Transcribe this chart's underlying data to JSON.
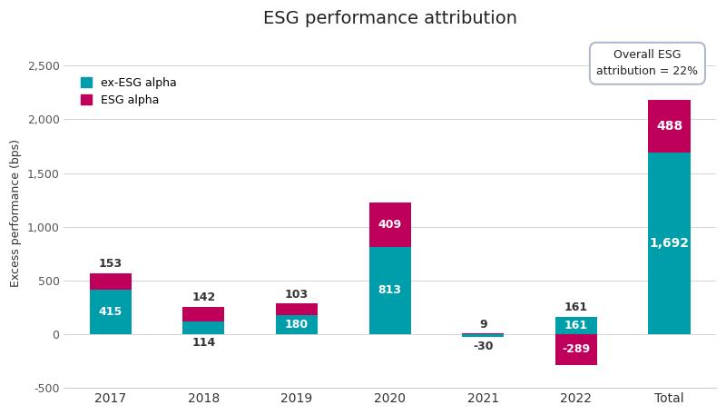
{
  "categories": [
    "2017",
    "2018",
    "2019",
    "2020",
    "2021",
    "2022",
    "Total"
  ],
  "ex_esg_alpha": [
    415,
    114,
    180,
    813,
    -30,
    161,
    1692
  ],
  "esg_alpha": [
    153,
    142,
    103,
    409,
    9,
    -289,
    488
  ],
  "ex_esg_color": "#009DAA",
  "esg_color": "#BE005A",
  "title": "ESG performance attribution",
  "ylabel": "Excess performance (bps)",
  "ylim": [
    -500,
    2750
  ],
  "yticks": [
    -500,
    0,
    500,
    1000,
    1500,
    2000,
    2500
  ],
  "legend_ex_esg": "ex-ESG alpha",
  "legend_esg": "ESG alpha",
  "annotation_box": "Overall ESG\nattribution = 22%",
  "background_color": "#ffffff",
  "bar_width": 0.45
}
